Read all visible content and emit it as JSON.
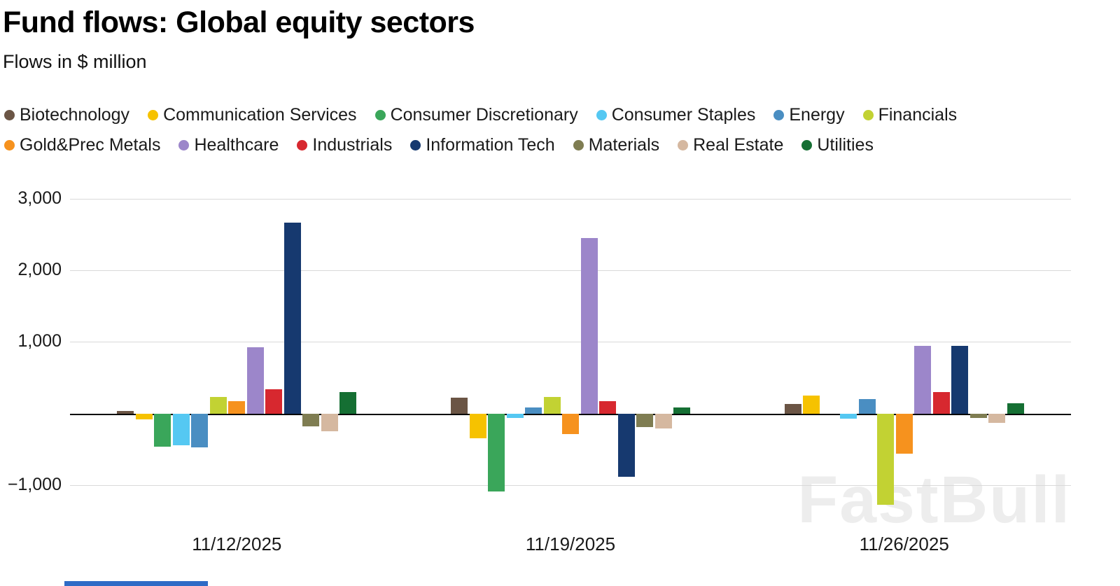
{
  "header": {
    "title": "Fund flows: Global equity sectors",
    "subtitle": "Flows in $ million"
  },
  "watermark": "FastBull",
  "accent_bar_color": "#2e6bc6",
  "chart_data": {
    "type": "bar",
    "title": "Fund flows: Global equity sectors",
    "subtitle": "Flows in $ million",
    "xlabel": "",
    "ylabel": "Flows ($ million)",
    "grid": true,
    "legend_position": "top",
    "ylim": [
      -1500,
      3000
    ],
    "yticks": [
      {
        "value": 3000,
        "label": "3,000"
      },
      {
        "value": 2000,
        "label": "2,000"
      },
      {
        "value": 1000,
        "label": "1,000"
      },
      {
        "value": 0,
        "label": ""
      },
      {
        "value": -1000,
        "label": "−1,000"
      }
    ],
    "categories": [
      "11/12/2025",
      "11/19/2025",
      "11/26/2025"
    ],
    "series": [
      {
        "name": "Biotechnology",
        "color": "#6b5545",
        "values": [
          40,
          220,
          130
        ]
      },
      {
        "name": "Communication Services",
        "color": "#f6c200",
        "values": [
          -80,
          -350,
          250
        ]
      },
      {
        "name": "Consumer Discretionary",
        "color": "#3aa65a",
        "values": [
          -460,
          -1090,
          0
        ]
      },
      {
        "name": "Consumer Staples",
        "color": "#55c8f2",
        "values": [
          -440,
          -60,
          -70
        ]
      },
      {
        "name": "Energy",
        "color": "#4a8ec2",
        "values": [
          -470,
          90,
          200
        ]
      },
      {
        "name": "Financials",
        "color": "#c2d233",
        "values": [
          230,
          230,
          -1280
        ]
      },
      {
        "name": "Gold&Prec Metals",
        "color": "#f6921e",
        "values": [
          170,
          -290,
          -560
        ]
      },
      {
        "name": "Healthcare",
        "color": "#9c86ca",
        "values": [
          930,
          2450,
          950
        ]
      },
      {
        "name": "Industrials",
        "color": "#d7282f",
        "values": [
          340,
          170,
          300
        ]
      },
      {
        "name": "Information Tech",
        "color": "#16396f",
        "values": [
          2670,
          -880,
          950
        ]
      },
      {
        "name": "Materials",
        "color": "#7f7d52",
        "values": [
          -180,
          -190,
          -60
        ]
      },
      {
        "name": "Real Estate",
        "color": "#d5b8a0",
        "values": [
          -250,
          -210,
          -130
        ]
      },
      {
        "name": "Utilities",
        "color": "#156f33",
        "values": [
          300,
          90,
          140
        ]
      }
    ]
  }
}
